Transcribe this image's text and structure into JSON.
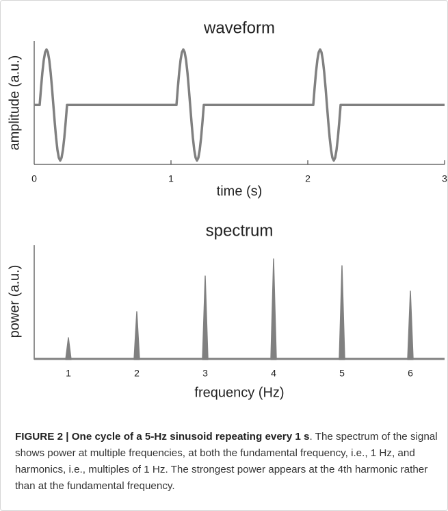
{
  "chart_data": [
    {
      "type": "line",
      "title": "waveform",
      "x_label": "time (s)",
      "y_label": "amplitude (a.u.)",
      "color": "#808080",
      "x": [
        0,
        0.04,
        0.05,
        0.06,
        0.07,
        0.08,
        0.09,
        0.1,
        0.11,
        0.12,
        0.13,
        0.14,
        0.15,
        0.16,
        0.17,
        0.18,
        0.19,
        0.2,
        0.21,
        0.22,
        0.23,
        0.24,
        1.04,
        1.05,
        1.06,
        1.07,
        1.08,
        1.09,
        1.1,
        1.11,
        1.12,
        1.13,
        1.14,
        1.15,
        1.16,
        1.17,
        1.18,
        1.19,
        1.2,
        1.21,
        1.22,
        1.23,
        1.24,
        2.04,
        2.05,
        2.06,
        2.07,
        2.08,
        2.09,
        2.1,
        2.11,
        2.12,
        2.13,
        2.14,
        2.15,
        2.16,
        2.17,
        2.18,
        2.19,
        2.2,
        2.21,
        2.22,
        2.23,
        2.24,
        3
      ],
      "values": [
        0,
        0,
        0.31,
        0.59,
        0.81,
        0.95,
        1,
        0.95,
        0.81,
        0.59,
        0.31,
        0,
        -0.31,
        -0.59,
        -0.81,
        -0.95,
        -1,
        -0.95,
        -0.81,
        -0.59,
        -0.31,
        0,
        0,
        0.31,
        0.59,
        0.81,
        0.95,
        1,
        0.95,
        0.81,
        0.59,
        0.31,
        0,
        -0.31,
        -0.59,
        -0.81,
        -0.95,
        -1,
        -0.95,
        -0.81,
        -0.59,
        -0.31,
        0,
        0,
        0.31,
        0.59,
        0.81,
        0.95,
        1,
        0.95,
        0.81,
        0.59,
        0.31,
        0,
        -0.31,
        -0.59,
        -0.81,
        -0.95,
        -1,
        -0.95,
        -0.81,
        -0.59,
        -0.31,
        0,
        0
      ],
      "xlim": [
        0,
        3
      ],
      "xticks": [
        0,
        1,
        2,
        3
      ],
      "ylim": [
        -1.07,
        1.15
      ]
    },
    {
      "type": "spike",
      "title": "spectrum",
      "x_label": "frequency (Hz)",
      "y_label": "power (a.u.)",
      "color": "#808080",
      "x": [
        1,
        2,
        3,
        4,
        5,
        6
      ],
      "values": [
        32,
        70,
        122,
        147,
        137,
        100
      ],
      "xlim": [
        0.5,
        6.5
      ],
      "xticks": [
        1,
        2,
        3,
        4,
        5,
        6
      ],
      "ylim": [
        0,
        167
      ]
    }
  ],
  "caption": {
    "bold": "FIGURE 2 | One cycle of a 5-Hz sinusoid repeating every 1 s",
    "text": ". The spectrum of the signal shows power at multiple frequencies, at both the fundamental frequency, i.e., 1 Hz, and harmonics, i.e., multiples of 1 Hz. The strongest power appears at the 4th harmonic rather than at the fundamental frequency."
  }
}
